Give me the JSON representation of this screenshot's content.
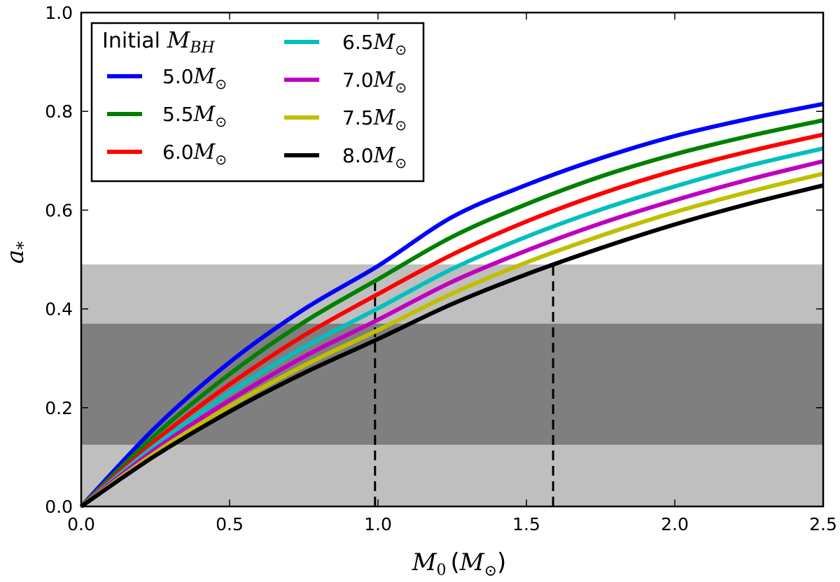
{
  "chart_data": {
    "type": "line",
    "xlabel": {
      "base": "M",
      "sub": "0",
      "unit_base": "M",
      "unit_sub": "⊙"
    },
    "ylabel": {
      "base": "a",
      "sub": "*"
    },
    "xlim": [
      0.0,
      2.5
    ],
    "ylim": [
      0.0,
      1.0
    ],
    "x_ticks": [
      0.0,
      0.5,
      1.0,
      1.5,
      2.0,
      2.5
    ],
    "y_ticks": [
      0.0,
      0.2,
      0.4,
      0.6,
      0.8,
      1.0
    ],
    "x_tick_labels": [
      "0.0",
      "0.5",
      "1.0",
      "1.5",
      "2.0",
      "2.5"
    ],
    "y_tick_labels": [
      "0.0",
      "0.2",
      "0.4",
      "0.6",
      "0.8",
      "1.0"
    ],
    "legend": {
      "title_word": "Initial",
      "title_math": "M",
      "title_sub": "BH",
      "placement": "top-left",
      "unit_base": "M",
      "unit_sub": "⊙"
    },
    "series": [
      {
        "name": "5.0",
        "color": "#0000ff",
        "x": [
          0,
          0.25,
          0.5,
          0.75,
          1.0,
          1.25,
          1.5,
          1.75,
          2.0,
          2.25,
          2.5
        ],
        "y": [
          0,
          0.16,
          0.292,
          0.399,
          0.487,
          0.586,
          0.651,
          0.705,
          0.75,
          0.785,
          0.815
        ]
      },
      {
        "name": "5.5",
        "color": "#008000",
        "x": [
          0,
          0.25,
          0.5,
          0.75,
          1.0,
          1.25,
          1.5,
          1.75,
          2.0,
          2.25,
          2.5
        ],
        "y": [
          0,
          0.145,
          0.268,
          0.373,
          0.46,
          0.546,
          0.612,
          0.668,
          0.713,
          0.75,
          0.782
        ]
      },
      {
        "name": "6.0",
        "color": "#ff0000",
        "x": [
          0,
          0.25,
          0.5,
          0.75,
          1.0,
          1.25,
          1.5,
          1.75,
          2.0,
          2.25,
          2.5
        ],
        "y": [
          0,
          0.133,
          0.247,
          0.346,
          0.43,
          0.51,
          0.577,
          0.633,
          0.68,
          0.719,
          0.753
        ]
      },
      {
        "name": "6.5",
        "color": "#00bfbf",
        "x": [
          0,
          0.25,
          0.5,
          0.75,
          1.0,
          1.25,
          1.5,
          1.75,
          2.0,
          2.25,
          2.5
        ],
        "y": [
          0,
          0.124,
          0.23,
          0.322,
          0.401,
          0.481,
          0.546,
          0.601,
          0.648,
          0.69,
          0.725
        ]
      },
      {
        "name": "7.0",
        "color": "#bf00bf",
        "x": [
          0,
          0.25,
          0.5,
          0.75,
          1.0,
          1.25,
          1.5,
          1.75,
          2.0,
          2.25,
          2.5
        ],
        "y": [
          0,
          0.116,
          0.215,
          0.303,
          0.378,
          0.455,
          0.518,
          0.573,
          0.62,
          0.662,
          0.699
        ]
      },
      {
        "name": "7.5",
        "color": "#bfbf00",
        "x": [
          0,
          0.25,
          0.5,
          0.75,
          1.0,
          1.25,
          1.5,
          1.75,
          2.0,
          2.25,
          2.5
        ],
        "y": [
          0,
          0.109,
          0.203,
          0.285,
          0.357,
          0.431,
          0.494,
          0.548,
          0.596,
          0.637,
          0.674
        ]
      },
      {
        "name": "8.0",
        "color": "#000000",
        "x": [
          0,
          0.25,
          0.5,
          0.75,
          1.0,
          1.25,
          1.5,
          1.75,
          2.0,
          2.25,
          2.5
        ],
        "y": [
          0,
          0.103,
          0.192,
          0.27,
          0.339,
          0.41,
          0.47,
          0.523,
          0.571,
          0.613,
          0.65
        ]
      }
    ],
    "bands": [
      {
        "name": "light-band",
        "y0": 0.0,
        "y1": 0.49,
        "color": "#bfbfbf"
      },
      {
        "name": "dark-band",
        "y0": 0.125,
        "y1": 0.37,
        "color": "#7f7f7f"
      }
    ],
    "vlines": [
      {
        "x": 0.99,
        "y0": 0.0,
        "y1": 0.46,
        "style": "dashed"
      },
      {
        "x": 1.59,
        "y0": 0.0,
        "y1": 0.49,
        "style": "dashed"
      }
    ]
  }
}
